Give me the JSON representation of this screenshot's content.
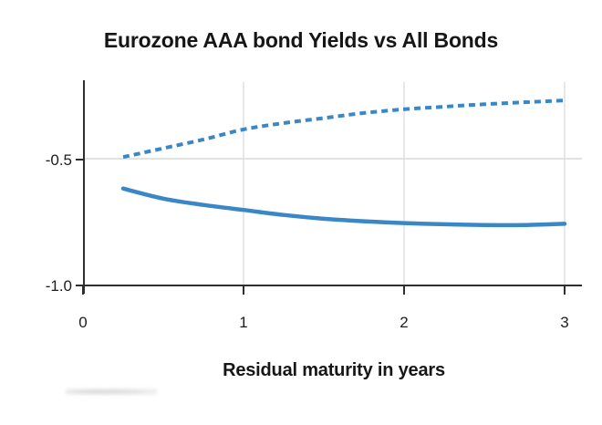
{
  "chart_data": {
    "type": "line",
    "title": "Eurozone AAA bond Yields vs All Bonds",
    "xlabel": "Residual maturity in years",
    "ylabel": "",
    "legend_position": "none",
    "grid": true,
    "xlim": [
      0,
      3.12
    ],
    "ylim": [
      -1.0,
      -0.19
    ],
    "x_axis": {
      "tick_values": [
        0,
        1,
        2,
        3
      ],
      "tick_labels": [
        "0",
        "1",
        "2",
        "3"
      ]
    },
    "y_axis": {
      "tick_values": [
        -0.5,
        -1.0
      ],
      "tick_labels": [
        "-0.5",
        "-1.0"
      ]
    },
    "x": [
      0.25,
      0.5,
      0.75,
      1.0,
      1.25,
      1.5,
      1.75,
      2.0,
      2.25,
      2.5,
      2.75,
      3.0
    ],
    "series": [
      {
        "name": "dashed-upper-line",
        "style": "dashed",
        "values": [
          -0.49,
          -0.455,
          -0.42,
          -0.38,
          -0.355,
          -0.335,
          -0.315,
          -0.3,
          -0.29,
          -0.28,
          -0.272,
          -0.265
        ]
      },
      {
        "name": "solid-lower-line",
        "style": "solid",
        "values": [
          -0.615,
          -0.655,
          -0.68,
          -0.7,
          -0.72,
          -0.735,
          -0.745,
          -0.752,
          -0.757,
          -0.76,
          -0.76,
          -0.755
        ]
      }
    ],
    "colors": {
      "line": "#3a87c8",
      "grid_h": "#d8d8d8",
      "grid_v": "#e0e0e0",
      "axis": "#2e2e2e",
      "text": "#1d1d1d"
    }
  }
}
